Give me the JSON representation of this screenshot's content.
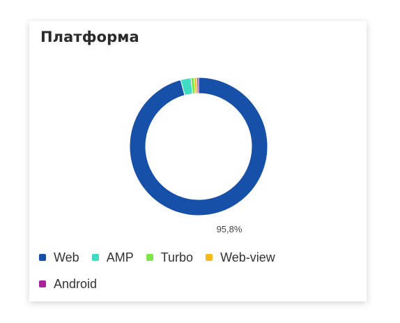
{
  "card": {
    "title": "Платформа"
  },
  "chart_data": {
    "type": "pie",
    "donut": true,
    "title": "Платформа",
    "categories": [
      "Web",
      "AMP",
      "Turbo",
      "Web-view",
      "Android"
    ],
    "values": [
      95.8,
      2.4,
      0.8,
      0.6,
      0.4
    ],
    "colors": [
      "#1650a8",
      "#3ddcc3",
      "#7ee54a",
      "#f5b91c",
      "#a8239a"
    ],
    "data_labels": [
      "95,8%"
    ],
    "legend_position": "bottom-left"
  }
}
